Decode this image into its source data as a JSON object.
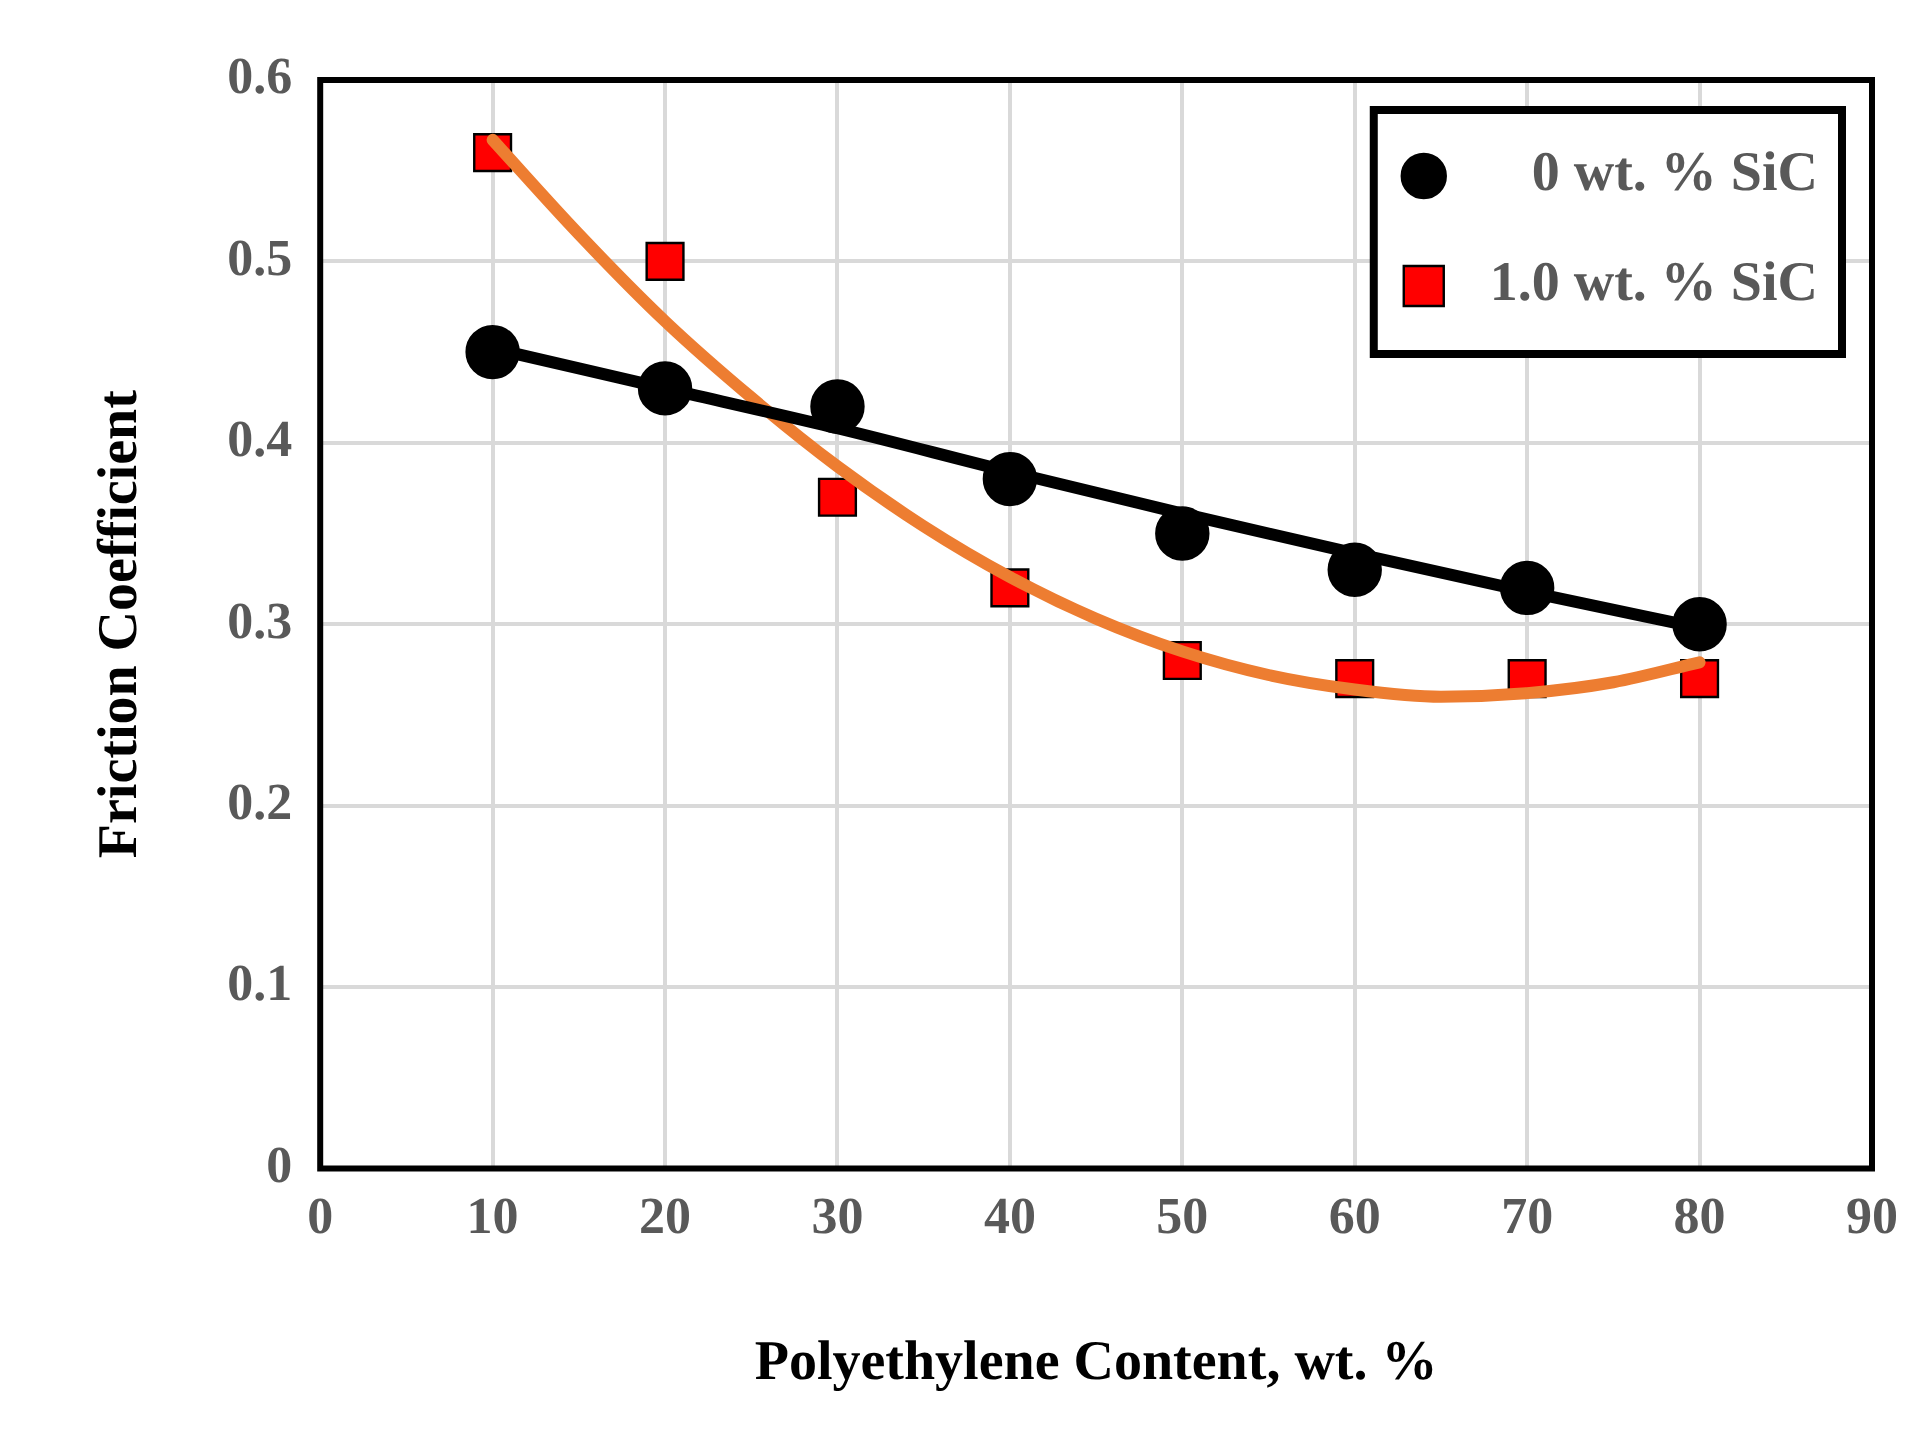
{
  "chart_data": {
    "type": "scatter",
    "xlabel": "Polyethylene Content, wt. %",
    "ylabel": "Friction Coefficient",
    "x": [
      10,
      20,
      30,
      40,
      50,
      60,
      70,
      80
    ],
    "series": [
      {
        "name": "0 wt. % SiC",
        "color": "#000000",
        "marker": "circle",
        "values": [
          0.45,
          0.43,
          0.42,
          0.38,
          0.35,
          0.33,
          0.32,
          0.3
        ]
      },
      {
        "name": "1.0 wt. % SiC",
        "color": "#ff0000",
        "marker": "square",
        "values": [
          0.56,
          0.5,
          0.37,
          0.32,
          0.28,
          0.27,
          0.27,
          0.27
        ]
      },
      {
        "type": "line",
        "color": "#000000",
        "marker": "none",
        "x": [
          10,
          20,
          30,
          40,
          50,
          60,
          70,
          80
        ],
        "values": [
          0.452,
          0.43,
          0.408,
          0.384,
          0.361,
          0.339,
          0.318,
          0.298
        ]
      },
      {
        "type": "line",
        "color": "#ed7d31",
        "marker": "none",
        "x": [
          10,
          15,
          20,
          25,
          30,
          35,
          40,
          45,
          50,
          55,
          60,
          65,
          70,
          75,
          80
        ],
        "values": [
          0.567,
          0.515,
          0.467,
          0.425,
          0.387,
          0.354,
          0.326,
          0.303,
          0.285,
          0.272,
          0.264,
          0.26,
          0.262,
          0.268,
          0.279
        ]
      }
    ],
    "xlim": [
      0,
      90
    ],
    "xticks": [
      0,
      10,
      20,
      30,
      40,
      50,
      60,
      70,
      80,
      90
    ],
    "ylim": [
      0,
      0.6
    ],
    "yticks": [
      0,
      0.1,
      0.2,
      0.3,
      0.4,
      0.5,
      0.6
    ],
    "grid": true,
    "legend": "top right"
  }
}
